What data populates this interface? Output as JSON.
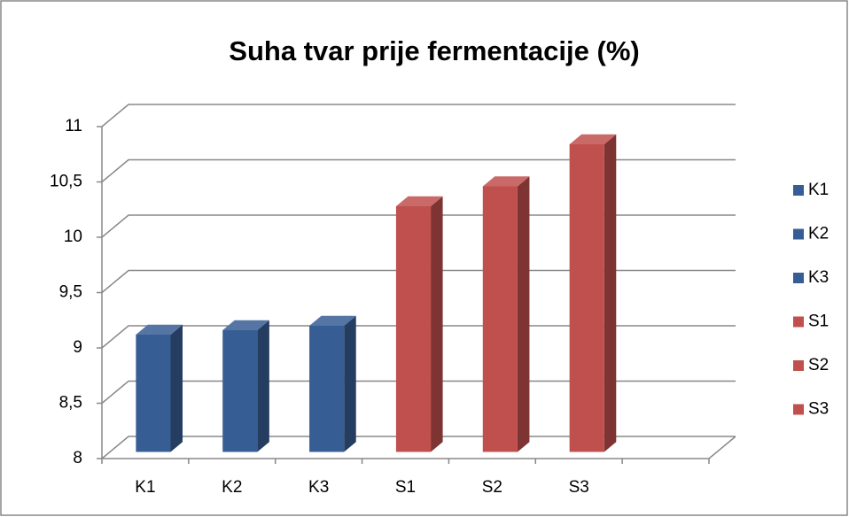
{
  "chart_data": {
    "type": "bar3d",
    "title": "Suha tvar prije fermentacije (%)",
    "categories": [
      "K1",
      "K2",
      "K3",
      "S1",
      "S2",
      "S3"
    ],
    "values": [
      9.06,
      9.1,
      9.14,
      10.22,
      10.4,
      10.78
    ],
    "colors": [
      "#375e94",
      "#375e94",
      "#375e94",
      "#c0504d",
      "#c0504d",
      "#c0504d"
    ],
    "ylim": [
      8,
      11
    ],
    "yticks": [
      8,
      {
        "value": 8.5,
        "label": "8,5"
      },
      9,
      {
        "value": 9.5,
        "label": "9,5"
      },
      10,
      {
        "value": 10.5,
        "label": "10,5"
      },
      11
    ],
    "grid": true,
    "legend": "right"
  }
}
